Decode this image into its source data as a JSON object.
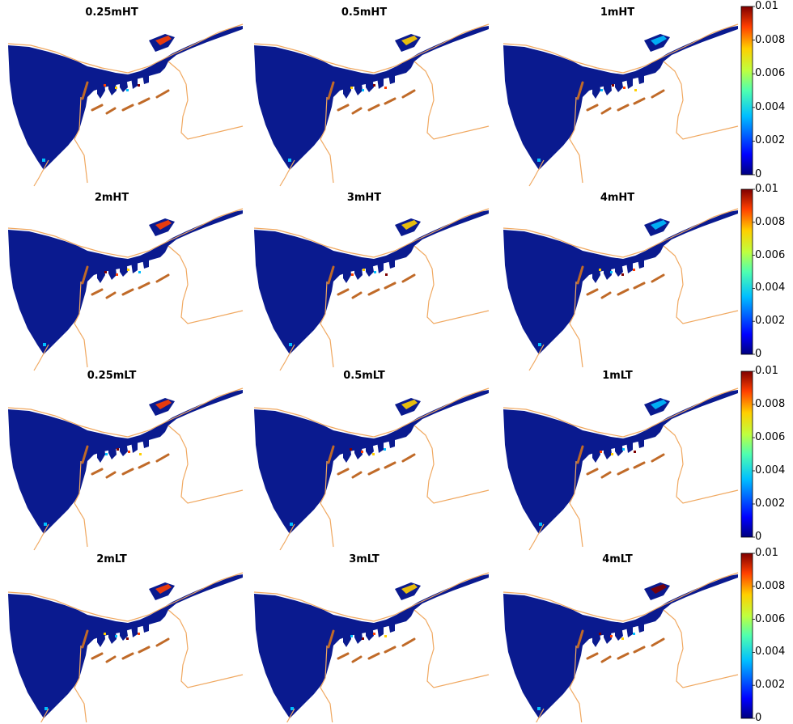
{
  "panels": [
    {
      "title": "0.25mHT"
    },
    {
      "title": "0.5mHT"
    },
    {
      "title": "1mHT"
    },
    {
      "title": "2mHT"
    },
    {
      "title": "3mHT"
    },
    {
      "title": "4mHT"
    },
    {
      "title": "0.25mLT"
    },
    {
      "title": "0.5mLT"
    },
    {
      "title": "1mLT"
    },
    {
      "title": "2mLT"
    },
    {
      "title": "3mLT"
    },
    {
      "title": "4mLT"
    }
  ],
  "colorbar": {
    "min": 0,
    "max": 0.01,
    "ticks": [
      "0.01",
      "0.008",
      "0.006",
      "0.004",
      "0.002",
      "0"
    ],
    "colormap": "jet"
  },
  "colors": {
    "water": "#0a1a8f",
    "coastline": "#f0a860",
    "structure": "#c06a28"
  }
}
